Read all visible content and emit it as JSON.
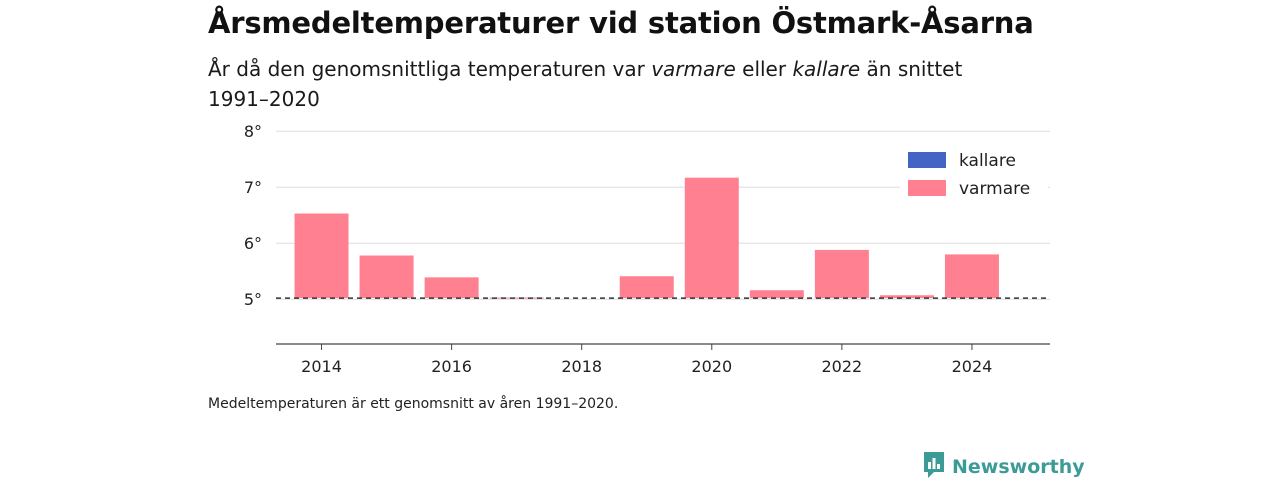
{
  "title": "Årsmedeltemperaturer vid station Östmark-Åsarna",
  "subtitle": {
    "part1": "År då den genomsnittliga temperaturen var ",
    "warm_word": "varmare",
    "part2": " eller ",
    "cold_word": "kallare",
    "part3": " än snittet 1991–2020"
  },
  "note": "Medeltemperaturen är ett genomsnitt av åren 1991–2020.",
  "brand": {
    "name": "Newsworthy",
    "icon": "bar-chart-speech-icon",
    "color": "#3c9b96"
  },
  "chart_data": {
    "type": "bar",
    "title": "",
    "xlabel": "",
    "ylabel": "",
    "baseline": 5.02,
    "x": [
      2014,
      2015,
      2016,
      2017,
      2018,
      2019,
      2020,
      2021,
      2022,
      2023,
      2024
    ],
    "values": [
      6.53,
      5.78,
      5.39,
      5.03,
      null,
      5.41,
      7.17,
      5.16,
      5.88,
      5.07,
      5.8
    ],
    "xticks": [
      "2014",
      "2016",
      "2018",
      "2020",
      "2022",
      "2024"
    ],
    "yticks": [
      "5°",
      "6°",
      "7°",
      "8°"
    ],
    "ylim": [
      4.2,
      8.2
    ],
    "xlim": [
      2013.3,
      2025.2
    ],
    "grid": true,
    "legend": {
      "position": "top-right",
      "items": [
        {
          "name": "kallare",
          "color": "#4363c5"
        },
        {
          "name": "varmare",
          "color": "#ff8090"
        }
      ]
    },
    "colors": {
      "warmer": "#ff8090",
      "colder": "#4363c5"
    }
  }
}
